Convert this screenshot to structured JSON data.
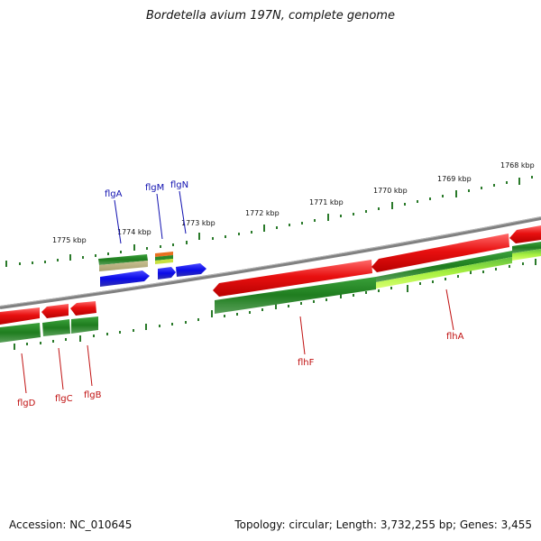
{
  "title": "Bordetella avium 197N, complete genome",
  "footer": {
    "accession": "Accession: NC_010645",
    "summary": "Topology: circular; Length: 3,732,255 bp; Genes: 3,455"
  },
  "scale": {
    "kbp_labels": [
      "1775 kbp",
      "1774 kbp",
      "1773 kbp",
      "1772 kbp",
      "1771 kbp",
      "1770 kbp",
      "1769 kbp",
      "1768 kbp"
    ]
  },
  "genes": {
    "flgA": "flgA",
    "flgM": "flgM",
    "flgN": "flgN",
    "flgD": "flgD",
    "flgC": "flgC",
    "flgB": "flgB",
    "flhF": "flhF",
    "flhA": "flhA"
  },
  "colors": {
    "forward_strand": "#e01010",
    "reverse_strand": "#1010e0",
    "feature_green": "#2a8a2a",
    "feature_lime": "#b0ff40",
    "backbone": "#888888",
    "tick": "#2a7a2a"
  }
}
